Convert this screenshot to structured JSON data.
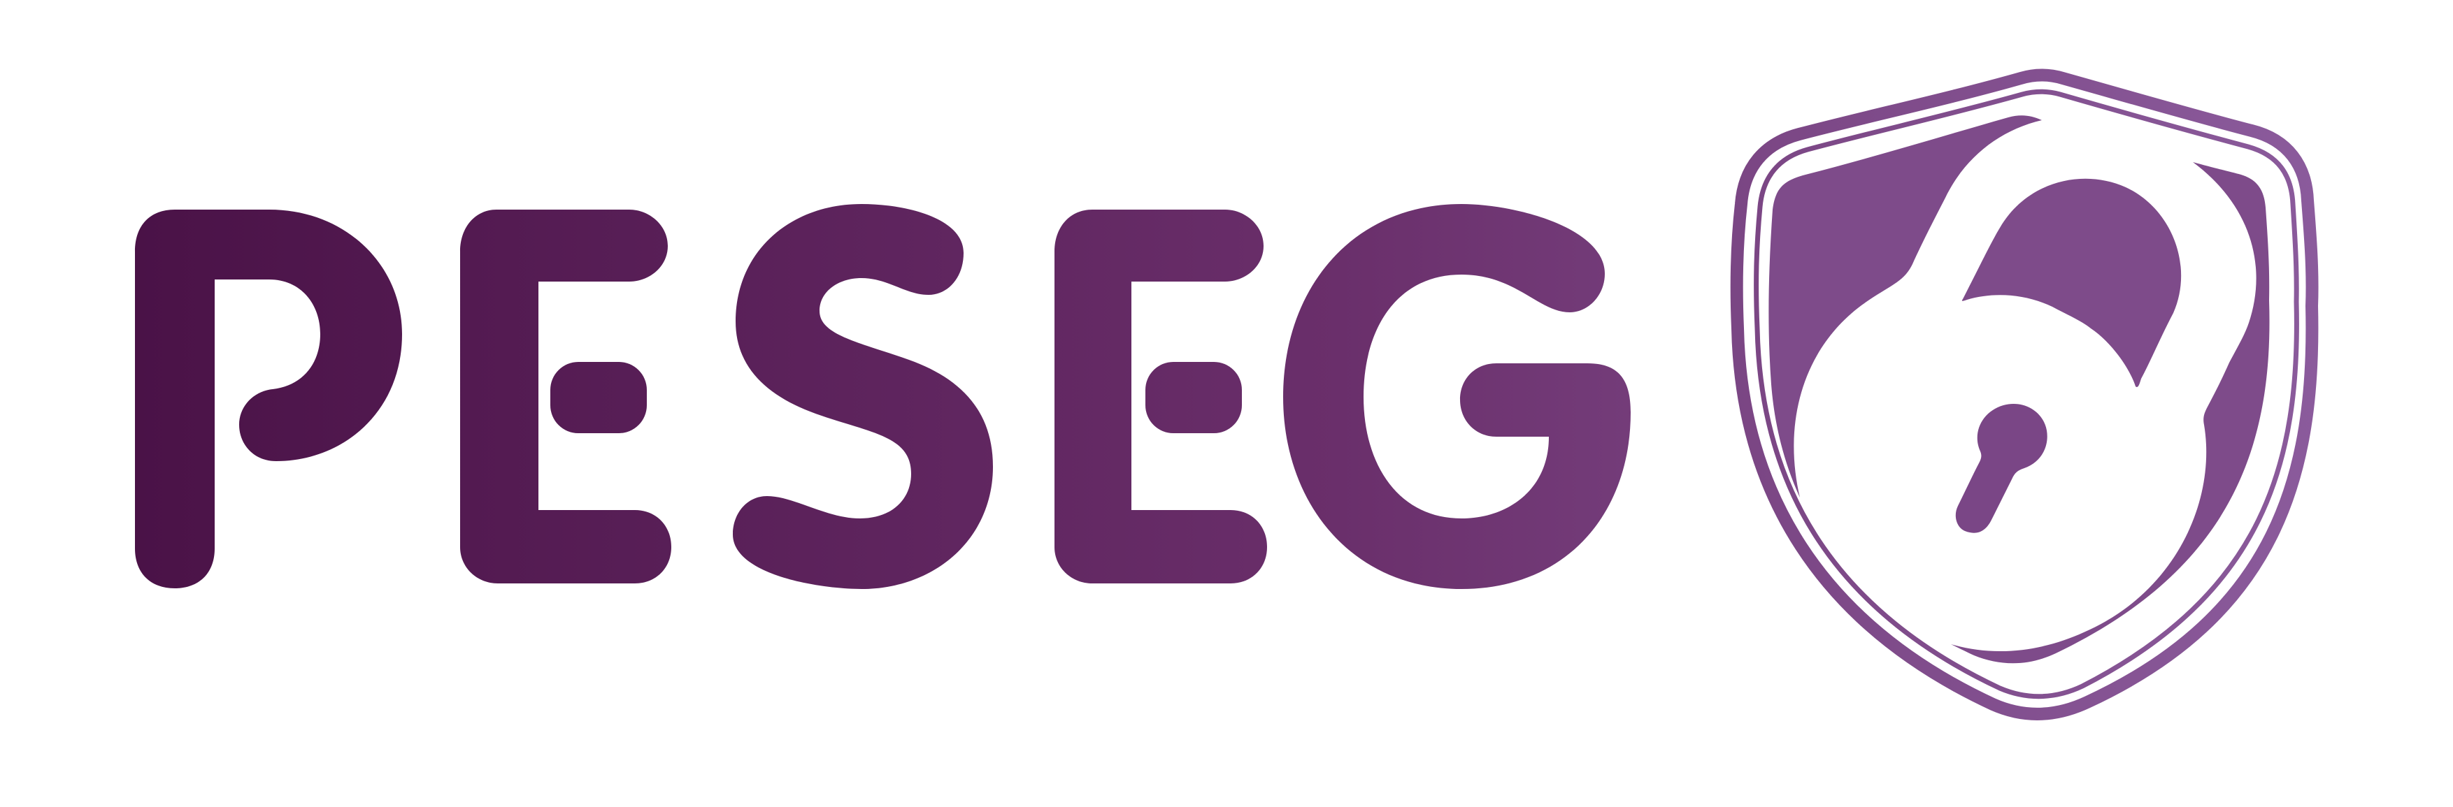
{
  "logo": {
    "wordmark": "PESEG",
    "colors": {
      "gradient_start": "#4a1247",
      "gradient_mid": "#6a2f6b",
      "gradient_end": "#8b5b9c",
      "shield_outline": "#7f4a89",
      "shield_fill": "#7e4b8a",
      "keyhole": "#7a4686"
    },
    "icon": "shield-lock-icon"
  }
}
